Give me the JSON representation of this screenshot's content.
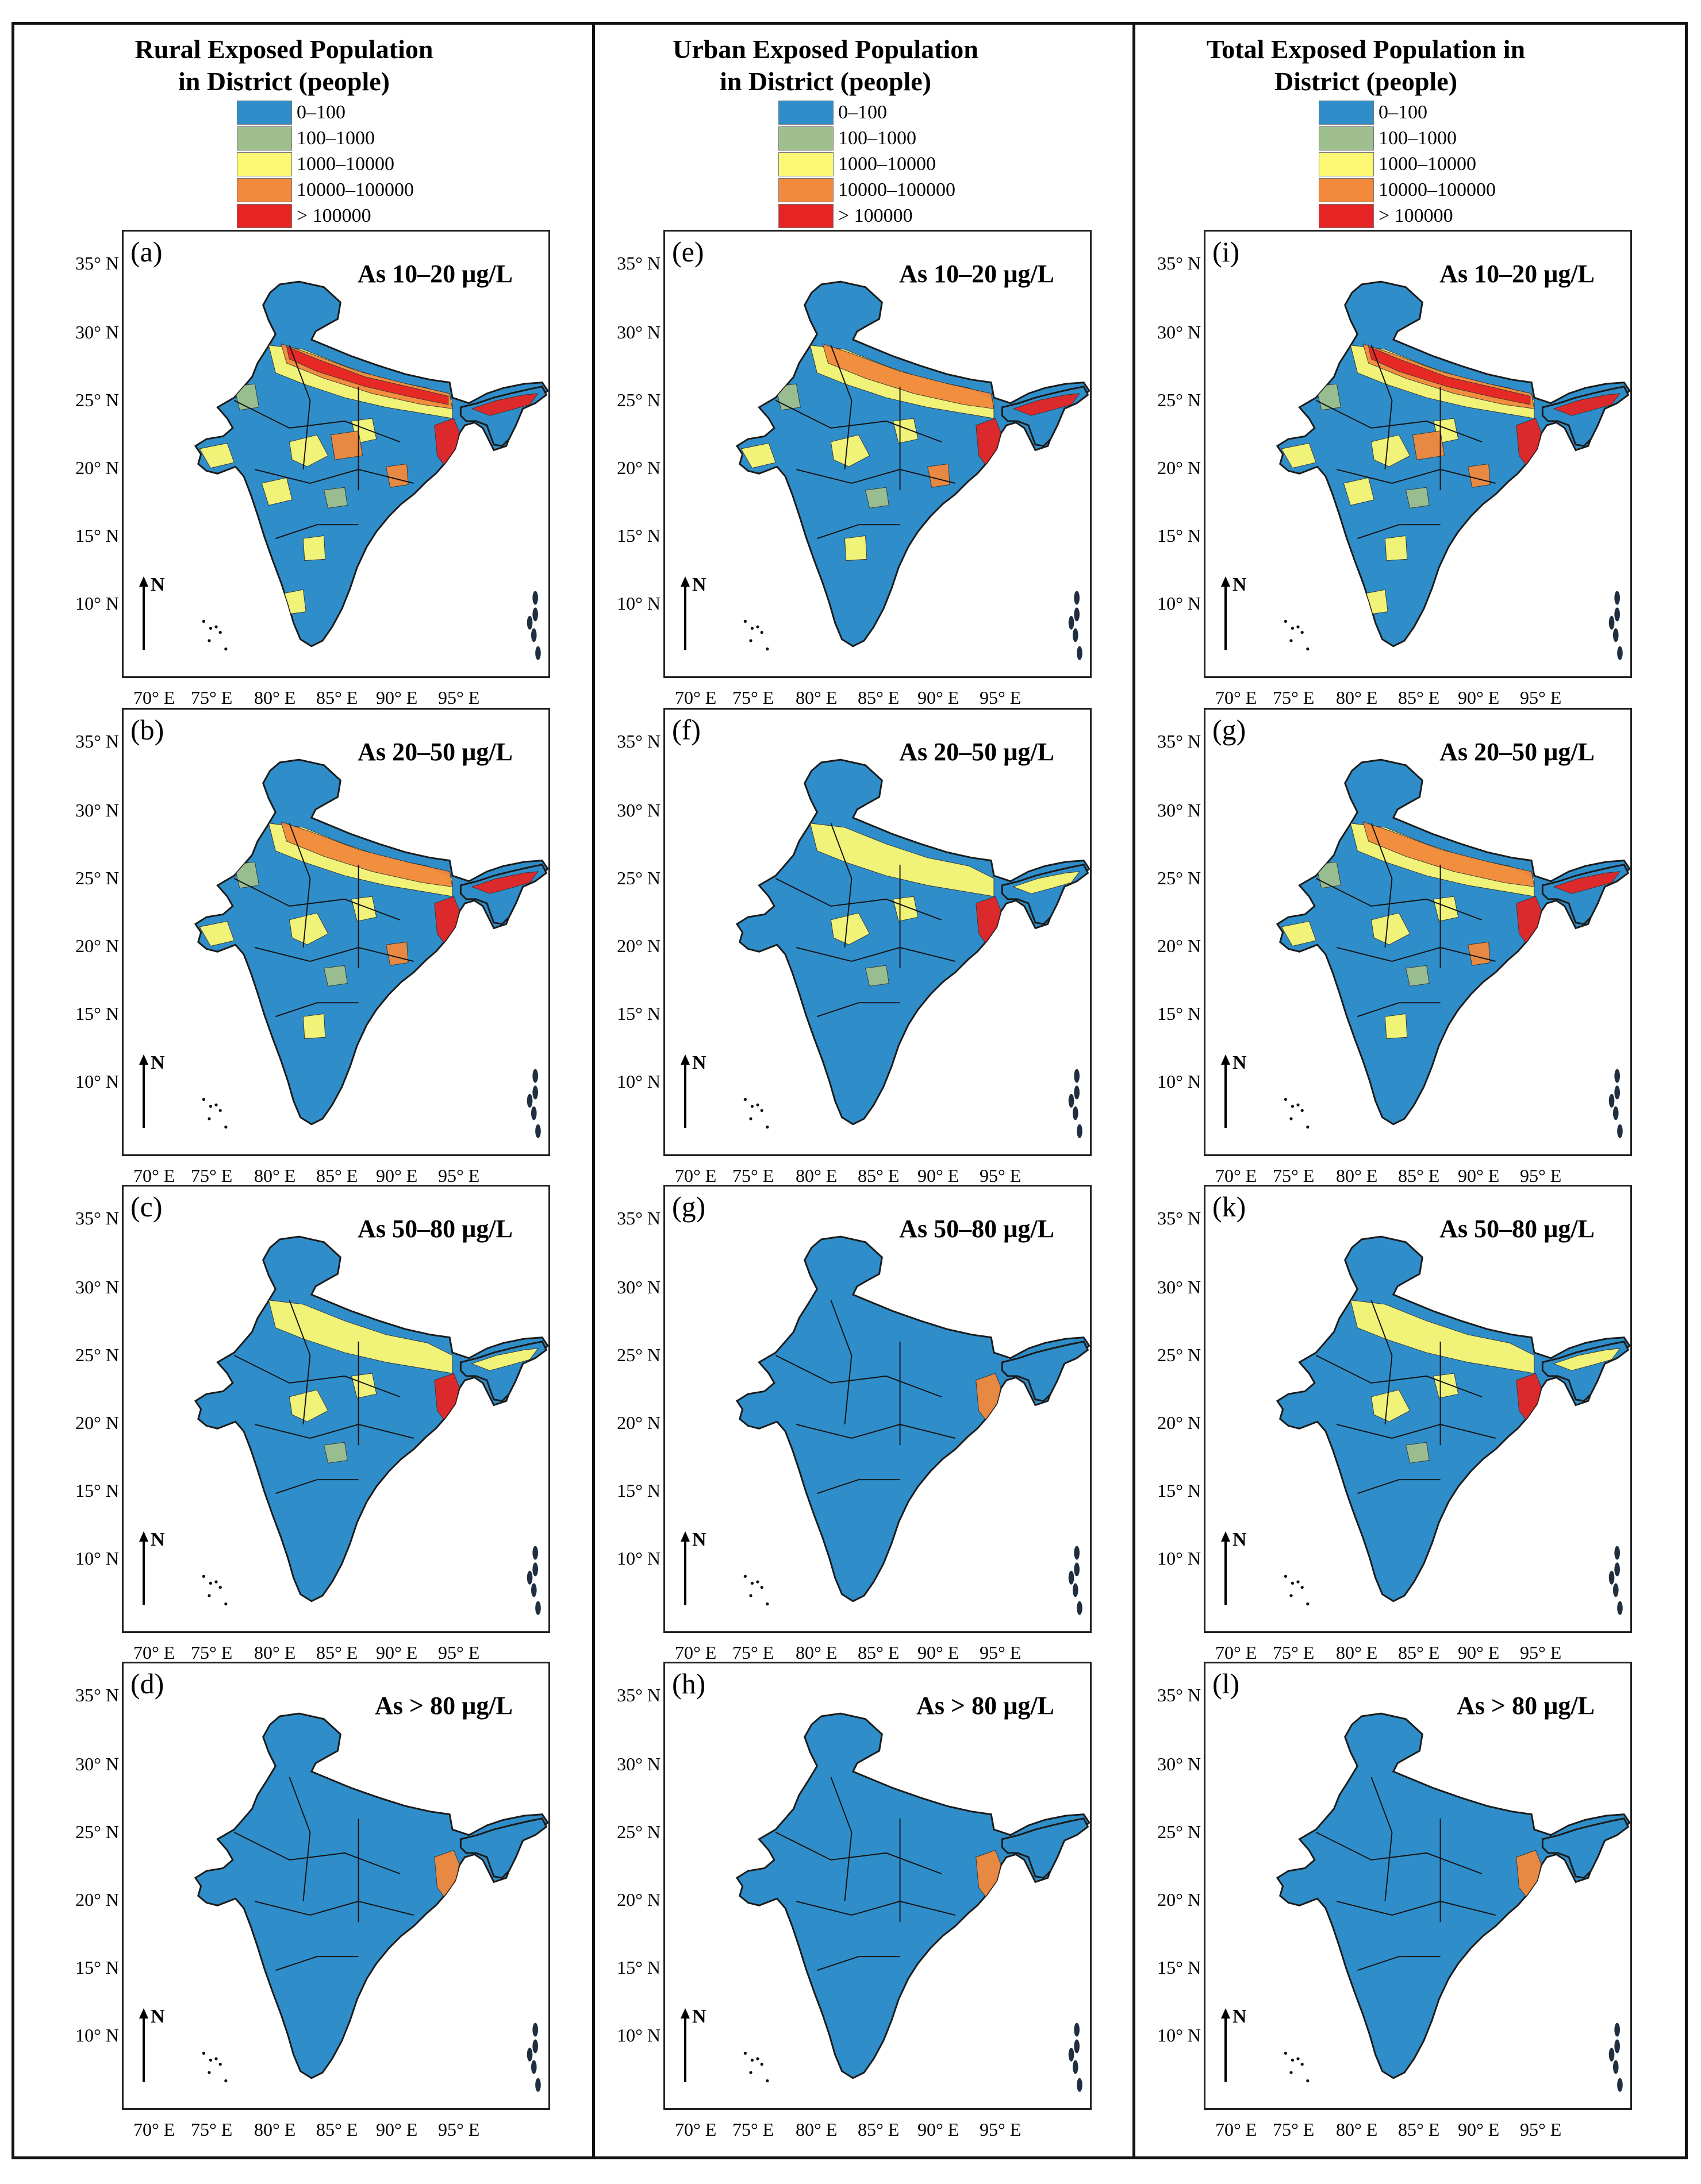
{
  "columns": [
    {
      "title": "Rural Exposed Population\nin District (people)"
    },
    {
      "title": "Urban Exposed Population\nin District (people)"
    },
    {
      "title": "Total Exposed Population in\nDistrict (people)"
    }
  ],
  "legend": [
    {
      "label": "0–100",
      "color": "#2f8ec9"
    },
    {
      "label": "100–1000",
      "color": "#9fc08e"
    },
    {
      "label": "1000–10000",
      "color": "#fcf874"
    },
    {
      "label": "10000–100000",
      "color": "#f2893c"
    },
    {
      "label": "> 100000",
      "color": "#e62424"
    }
  ],
  "axes": {
    "lat_ticks": [
      "35° N",
      "30° N",
      "25° N",
      "20° N",
      "15° N",
      "10° N"
    ],
    "lon_ticks": [
      "70° E",
      "75° E",
      "80° E",
      "85° E",
      "90° E",
      "95° E"
    ]
  },
  "north_label": "N",
  "panels": [
    [
      {
        "letter": "(a)",
        "label": "As 10–20 µg/L",
        "level": 3
      },
      {
        "letter": "(b)",
        "label": "As 20–50 µg/L",
        "level": 2
      },
      {
        "letter": "(c)",
        "label": "As 50–80 µg/L",
        "level": 1
      },
      {
        "letter": "(d)",
        "label": "As > 80 µg/L",
        "level": 0
      }
    ],
    [
      {
        "letter": "(e)",
        "label": "As 10–20 µg/L",
        "level": 2
      },
      {
        "letter": "(f)",
        "label": "As 20–50 µg/L",
        "level": 1
      },
      {
        "letter": "(g)",
        "label": "As 50–80 µg/L",
        "level": 0
      },
      {
        "letter": "(h)",
        "label": "As > 80 µg/L",
        "level": 0
      }
    ],
    [
      {
        "letter": "(i)",
        "label": "As 10–20 µg/L",
        "level": 3
      },
      {
        "letter": "(g)",
        "label": "As 20–50 µg/L",
        "level": 2
      },
      {
        "letter": "(k)",
        "label": "As 50–80 µg/L",
        "level": 1
      },
      {
        "letter": "(l)",
        "label": "As > 80 µg/L",
        "level": 0
      }
    ]
  ]
}
